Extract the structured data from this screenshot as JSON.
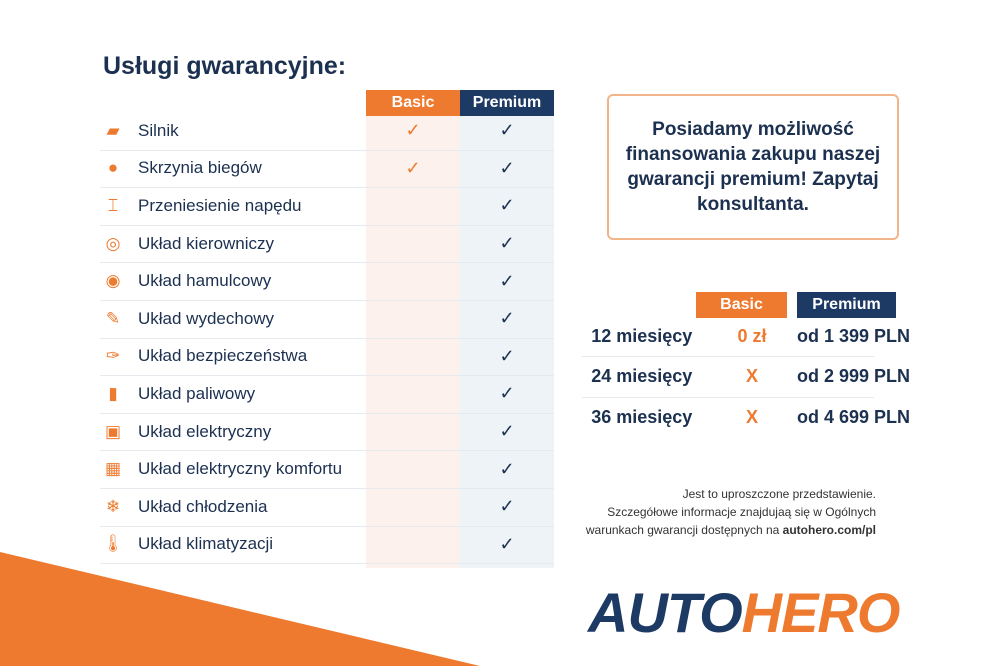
{
  "title": "Usługi gwarancyjne:",
  "columns": {
    "basic": "Basic",
    "premium": "Premium"
  },
  "check_symbol": "✓",
  "colors": {
    "orange": "#ee7a2f",
    "navy": "#1c3050"
  },
  "services": [
    {
      "label": "Silnik",
      "icon": "engine-icon",
      "basic": true,
      "premium": true
    },
    {
      "label": "Skrzynia biegów",
      "icon": "gearbox-icon",
      "basic": true,
      "premium": true
    },
    {
      "label": "Przeniesienie napędu",
      "icon": "drivetrain-icon",
      "basic": false,
      "premium": true
    },
    {
      "label": "Układ kierowniczy",
      "icon": "steering-wheel-icon",
      "basic": false,
      "premium": true
    },
    {
      "label": "Układ hamulcowy",
      "icon": "brake-disc-icon",
      "basic": false,
      "premium": true
    },
    {
      "label": "Układ wydechowy",
      "icon": "exhaust-icon",
      "basic": false,
      "premium": true
    },
    {
      "label": "Układ bezpieczeństwa",
      "icon": "airbag-icon",
      "basic": false,
      "premium": true
    },
    {
      "label": "Układ paliwowy",
      "icon": "fuel-pump-icon",
      "basic": false,
      "premium": true
    },
    {
      "label": "Układ elektryczny",
      "icon": "battery-icon",
      "basic": false,
      "premium": true
    },
    {
      "label": "Układ elektryczny komfortu",
      "icon": "chip-icon",
      "basic": false,
      "premium": true
    },
    {
      "label": "Układ chłodzenia",
      "icon": "snowflake-icon",
      "basic": false,
      "premium": true
    },
    {
      "label": "Układ klimatyzacji",
      "icon": "thermometer-icon",
      "basic": false,
      "premium": true
    }
  ],
  "promo": "Posiadamy możliwość finansowania zakupu naszej gwarancji premium! Zapytaj konsultanta.",
  "pricing": [
    {
      "months": "12 miesięcy",
      "basic": "0 zł",
      "premium": "od 1 399 PLN"
    },
    {
      "months": "24 miesięcy",
      "basic": "X",
      "premium": "od 2 999 PLN"
    },
    {
      "months": "36 miesięcy",
      "basic": "X",
      "premium": "od 4 699 PLN"
    }
  ],
  "disclaimer": {
    "line1": "Jest to uproszczone przedstawienie.",
    "line2": "Szczegółowe informacje znajdujaą się w Ogólnych",
    "line3": "warunkach gwarancji dostępnych na ",
    "link": "autohero.com/pl"
  },
  "logo": {
    "part1": "AUTO",
    "part2": "HERO"
  }
}
